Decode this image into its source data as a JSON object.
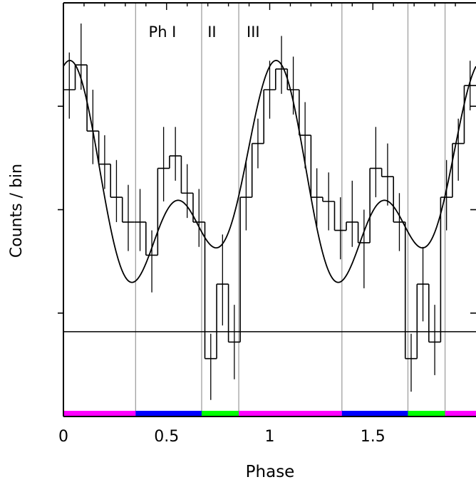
{
  "chart_data": {
    "type": "line",
    "title": "",
    "xlabel": "Phase",
    "ylabel": "Counts / bin",
    "xlim": [
      0,
      2
    ],
    "ylim": [
      0,
      100
    ],
    "yticks_labeled": false,
    "yticks": [
      25,
      50,
      75
    ],
    "xticks": [
      {
        "value": 0,
        "label": "0"
      },
      {
        "value": 0.5,
        "label": "0.5"
      },
      {
        "value": 1,
        "label": "1"
      },
      {
        "value": 1.5,
        "label": "1.5"
      }
    ],
    "phase_boundaries": [
      0.35,
      0.67,
      0.85,
      1.35,
      1.67,
      1.85
    ],
    "phase_labels": [
      {
        "text": "Ph  I",
        "x": 0.48
      },
      {
        "text": "II",
        "x": 0.72
      },
      {
        "text": "III",
        "x": 0.92
      }
    ],
    "background_level": 20.5,
    "histogram": {
      "bin_width": 0.0571,
      "bins_left": [
        0,
        0.0571,
        0.1143,
        0.1714,
        0.2286,
        0.2857,
        0.3429,
        0.4,
        0.4571,
        0.5143,
        0.5714,
        0.6286,
        0.6857,
        0.7429,
        0.8,
        0.8571,
        0.9143,
        0.9714,
        1.0286,
        1.0857,
        1.1429,
        1.2,
        1.2571,
        1.3143,
        1.3714,
        1.4286,
        1.4857,
        1.5429,
        1.6,
        1.6571,
        1.7143,
        1.7714,
        1.8286,
        1.8857,
        1.9429
      ],
      "values": [
        79,
        85,
        69,
        61,
        53,
        47,
        47,
        39,
        60,
        63,
        54,
        47,
        14,
        32,
        18,
        53,
        66,
        79,
        84,
        79,
        68,
        53,
        52,
        45,
        47,
        42,
        60,
        58,
        47,
        14,
        32,
        18,
        53,
        66,
        80
      ],
      "error_lo": [
        72,
        79,
        61,
        55,
        47,
        40,
        40,
        30,
        52,
        57,
        48,
        41,
        4,
        22,
        9,
        45,
        60,
        72,
        78,
        73,
        60,
        46,
        45,
        38,
        41,
        31,
        53,
        51,
        40,
        6,
        23,
        10,
        45,
        57,
        74
      ],
      "error_hi": [
        88,
        95,
        79,
        68,
        62,
        56,
        55,
        45,
        70,
        70,
        61,
        55,
        20,
        44,
        27,
        62,
        72,
        86,
        92,
        87,
        76,
        60,
        59,
        53,
        57,
        50,
        70,
        66,
        54,
        20,
        41,
        27,
        62,
        72,
        86
      ]
    },
    "model_curve": {
      "form": "A0 + A1*cos(2*pi*(phi-p1)) + A2*cos(4*pi*(phi-p2))",
      "A0": 54,
      "A1": 17.5,
      "p1": 0.0,
      "A2": 15,
      "p2": 0.04,
      "x_range": [
        0,
        2
      ]
    },
    "phase_bar": [
      {
        "from": 0,
        "to": 0.35,
        "color": "#ff00ff"
      },
      {
        "from": 0.35,
        "to": 0.67,
        "color": "#0000ff"
      },
      {
        "from": 0.67,
        "to": 0.85,
        "color": "#00ff00"
      },
      {
        "from": 0.85,
        "to": 1.35,
        "color": "#ff00ff"
      },
      {
        "from": 1.35,
        "to": 1.67,
        "color": "#0000ff"
      },
      {
        "from": 1.67,
        "to": 1.85,
        "color": "#00ff00"
      },
      {
        "from": 1.85,
        "to": 2,
        "color": "#ff00ff"
      }
    ],
    "colors": {
      "axes": "#000000",
      "phase_lines": "#a0a0a0",
      "data": "#000000"
    },
    "grid": false,
    "legend": "none"
  }
}
